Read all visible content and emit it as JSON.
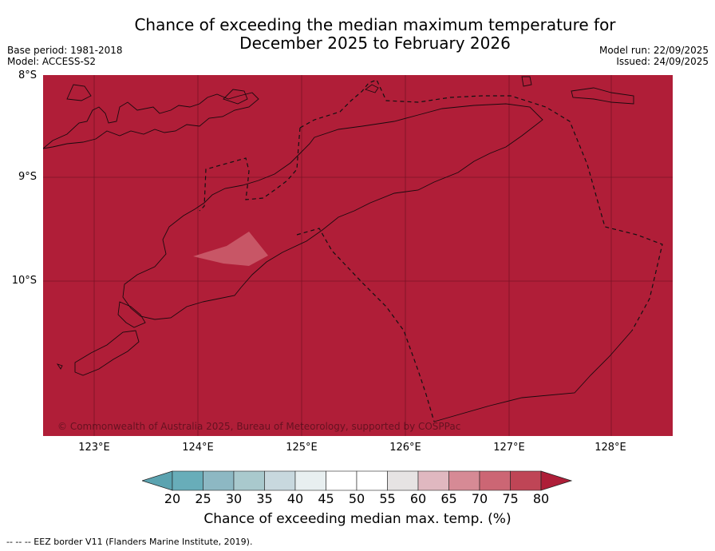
{
  "header": {
    "title_line1": "Chance of exceeding the median maximum temperature for",
    "title_line2": "December 2025 to February 2026",
    "base_period": "Base period: 1981-2018",
    "model": "Model: ACCESS-S2",
    "model_run": "Model run: 22/09/2025",
    "issued": "Issued: 24/09/2025"
  },
  "map": {
    "lat_labels": [
      "8°S",
      "9°S",
      "10°S"
    ],
    "lon_labels": [
      "123°E",
      "124°E",
      "125°E",
      "126°E",
      "127°E",
      "128°E"
    ],
    "credit": "© Commonwealth of Australia 2025, Bureau of Meteorology, supported by COSPPac",
    "background_color": "#b01e38"
  },
  "colorbar": {
    "ticks": [
      "20",
      "25",
      "30",
      "35",
      "40",
      "45",
      "50",
      "55",
      "60",
      "65",
      "70",
      "75",
      "80"
    ],
    "colors": [
      "#5ba3b0",
      "#68adb9",
      "#8db8c3",
      "#a9c9cd",
      "#c8d8de",
      "#e8eff0",
      "#ffffff",
      "#ffffff",
      "#e6e3e3",
      "#e0b8c0",
      "#d68a95",
      "#cc6674",
      "#bf4556",
      "#ae1e38"
    ],
    "label": "Chance of exceeding median max. temp. (%)"
  },
  "footnote": "--  --  -- EEZ border V11 (Flanders Marine Institute, 2019)."
}
